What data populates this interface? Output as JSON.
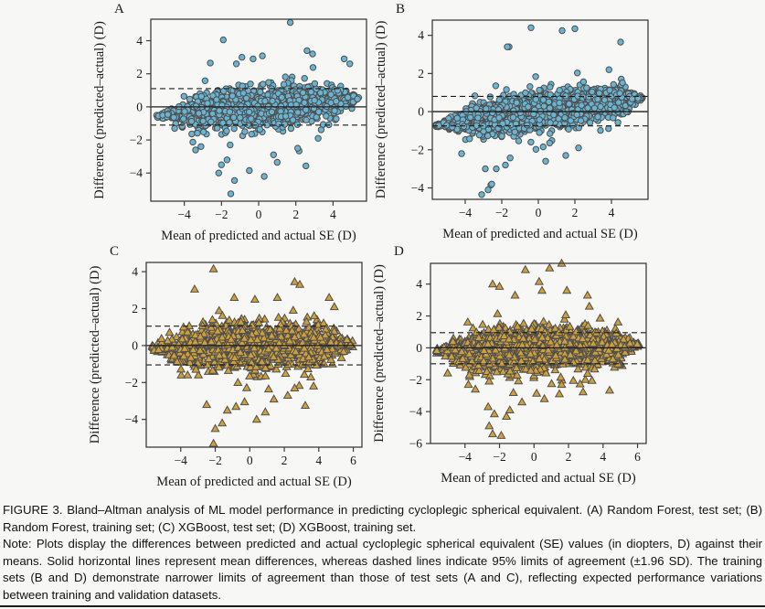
{
  "page": {
    "background": "#f7f7f5",
    "rule_color": "#1b1b1b"
  },
  "caption": {
    "figure_text": "FIGURE 3. Bland–Altman analysis of ML model performance in predicting cycloplegic spherical equivalent. (A) Random Forest, test set; (B) Random Forest, training set; (C) XGBoost, test set; (D) XGBoost, training set.",
    "note_text": "Note: Plots display the differences between predicted and actual cycloplegic spherical equivalent (SE) values (in diopters, D) against their means. Solid horizontal lines represent mean differences, whereas dashed lines indicate 95% limits of agreement (±1.96 SD). The training sets (B and D) demonstrate narrower limits of agreement than those of test sets (A and C), reflecting expected performance variations between training and validation datasets."
  },
  "chart_data": [
    {
      "type": "scatter",
      "panel_label": "A",
      "model": "Random Forest",
      "dataset": "test set",
      "xlabel": "Mean of predicted and actual SE (D)",
      "ylabel": "Difference (predicted–actual) (D)",
      "xlim": [
        -5.8,
        5.8
      ],
      "ylim": [
        -5.7,
        5.3
      ],
      "xticks": [
        -4,
        -2,
        0,
        2,
        4
      ],
      "yticks": [
        -4,
        -2,
        0,
        2,
        4
      ],
      "mean_diff": 0.0,
      "upper_loa": 1.1,
      "lower_loa": -1.1,
      "marker": "circle",
      "marker_fill": "#69b4d2",
      "marker_edge": "#4f4f4f",
      "line_color": "#1c1c1c",
      "grid": false,
      "n_points": 1450,
      "seed": 101,
      "trend_slope": 0.1,
      "y_sd": 0.55,
      "tail_frac": 0.035,
      "x_range": [
        -5.5,
        5.4
      ],
      "taper": [
        2.0,
        1.1
      ],
      "outliers": [
        [
          1.7,
          5.1
        ],
        [
          -1.9,
          4.05
        ],
        [
          -2.6,
          2.65
        ],
        [
          -1.2,
          2.6
        ],
        [
          -0.9,
          3.0
        ],
        [
          -0.3,
          2.9
        ],
        [
          2.6,
          3.4
        ],
        [
          2.9,
          3.2
        ],
        [
          4.6,
          2.9
        ],
        [
          4.9,
          2.6
        ],
        [
          -1.5,
          -5.25
        ],
        [
          -2.15,
          -4.0
        ],
        [
          -1.3,
          -4.45
        ],
        [
          -0.5,
          -3.85
        ],
        [
          0.3,
          -4.2
        ],
        [
          1.0,
          -3.35
        ],
        [
          -2.0,
          -3.5
        ],
        [
          -1.7,
          -3.2
        ],
        [
          0.8,
          -2.9
        ],
        [
          2.1,
          -2.5
        ],
        [
          -3.1,
          -2.4
        ],
        [
          3.2,
          -1.9
        ]
      ]
    },
    {
      "type": "scatter",
      "panel_label": "B",
      "model": "Random Forest",
      "dataset": "training set",
      "xlabel": "Mean of predicted and actual SE (D)",
      "ylabel": "Difference (predicted–actual) (D)",
      "xlim": [
        -5.8,
        6.0
      ],
      "ylim": [
        -4.6,
        4.8
      ],
      "xticks": [
        -4,
        -2,
        0,
        2,
        4
      ],
      "yticks": [
        -4,
        -2,
        0,
        2,
        4
      ],
      "mean_diff": 0.0,
      "upper_loa": 0.8,
      "lower_loa": -0.75,
      "marker": "circle",
      "marker_fill": "#69b4d2",
      "marker_edge": "#4f4f4f",
      "line_color": "#1c1c1c",
      "grid": false,
      "n_points": 2400,
      "seed": 202,
      "trend_slope": 0.13,
      "y_sd": 0.4,
      "tail_frac": 0.045,
      "x_range": [
        -5.6,
        5.7
      ],
      "taper": [
        2.2,
        1.2
      ],
      "outliers": [
        [
          -0.4,
          4.4
        ],
        [
          1.3,
          4.25
        ],
        [
          2.0,
          4.35
        ],
        [
          -1.6,
          3.4
        ],
        [
          4.5,
          3.65
        ],
        [
          -1.7,
          3.4
        ],
        [
          -2.9,
          -3.0
        ],
        [
          -2.6,
          -3.85
        ],
        [
          -2.75,
          -4.1
        ],
        [
          -3.1,
          -4.35
        ],
        [
          -2.55,
          -3.8
        ],
        [
          0.4,
          -2.6
        ],
        [
          1.5,
          -2.3
        ],
        [
          -1.8,
          -2.8
        ],
        [
          -4.2,
          -2.2
        ],
        [
          2.2,
          -1.9
        ],
        [
          -2.3,
          -3.0
        ]
      ]
    },
    {
      "type": "scatter",
      "panel_label": "C",
      "model": "XGBoost",
      "dataset": "test set",
      "xlabel": "Mean of predicted and actual SE (D)",
      "ylabel": "Difference (predicted–actual) (D)",
      "xlim": [
        -6.0,
        6.5
      ],
      "ylim": [
        -5.5,
        4.5
      ],
      "xticks": [
        -4,
        -2,
        0,
        2,
        4,
        6
      ],
      "yticks": [
        -4,
        -2,
        0,
        2,
        4
      ],
      "mean_diff": 0.0,
      "upper_loa": 1.05,
      "lower_loa": -1.05,
      "marker": "triangle",
      "marker_fill": "#cfa03a",
      "marker_edge": "#4f4f4f",
      "line_color": "#1c1c1c",
      "grid": false,
      "n_points": 1300,
      "seed": 303,
      "trend_slope": 0.02,
      "y_sd": 0.58,
      "tail_frac": 0.05,
      "x_range": [
        -5.7,
        6.0
      ],
      "taper": [
        1.8,
        1.5
      ],
      "outliers": [
        [
          -2.1,
          4.15
        ],
        [
          -3.2,
          3.05
        ],
        [
          2.6,
          3.45
        ],
        [
          2.9,
          3.3
        ],
        [
          -0.9,
          2.6
        ],
        [
          0.3,
          2.5
        ],
        [
          1.6,
          2.6
        ],
        [
          4.6,
          2.6
        ],
        [
          4.9,
          2.1
        ],
        [
          -2.1,
          -5.3
        ],
        [
          -2.0,
          -4.5
        ],
        [
          -1.6,
          -4.2
        ],
        [
          -1.3,
          -3.5
        ],
        [
          -0.8,
          -3.3
        ],
        [
          -2.5,
          -3.2
        ],
        [
          0.4,
          -4.0
        ],
        [
          0.9,
          -3.6
        ],
        [
          2.2,
          -2.7
        ],
        [
          2.6,
          -2.3
        ],
        [
          3.7,
          -2.2
        ],
        [
          -3.6,
          -1.6
        ],
        [
          1.4,
          -2.9
        ]
      ]
    },
    {
      "type": "scatter",
      "panel_label": "D",
      "model": "XGBoost",
      "dataset": "training set",
      "xlabel": "Mean of predicted and actual SE (D)",
      "ylabel": "Difference (predicted–actual) (D)",
      "xlim": [
        -6.0,
        6.5
      ],
      "ylim": [
        -6.0,
        5.3
      ],
      "xticks": [
        -4,
        -2,
        0,
        2,
        4,
        6
      ],
      "yticks": [
        -6,
        -4,
        -2,
        0,
        2,
        4
      ],
      "mean_diff": 0.0,
      "upper_loa": 0.95,
      "lower_loa": -1.0,
      "marker": "triangle",
      "marker_fill": "#cfa03a",
      "marker_edge": "#4f4f4f",
      "line_color": "#1c1c1c",
      "grid": false,
      "n_points": 2400,
      "seed": 404,
      "trend_slope": 0.03,
      "y_sd": 0.55,
      "tail_frac": 0.05,
      "x_range": [
        -5.7,
        6.1
      ],
      "taper": [
        2.0,
        1.5
      ],
      "outliers": [
        [
          -0.5,
          4.9
        ],
        [
          0.9,
          5.0
        ],
        [
          1.6,
          5.3
        ],
        [
          -2.4,
          4.0
        ],
        [
          -2.0,
          3.85
        ],
        [
          0.3,
          4.15
        ],
        [
          -1.1,
          3.3
        ],
        [
          1.9,
          3.6
        ],
        [
          3.1,
          3.3
        ],
        [
          -2.4,
          -5.4
        ],
        [
          -1.9,
          -5.5
        ],
        [
          -2.6,
          -4.9
        ],
        [
          -2.3,
          -4.15
        ],
        [
          -1.6,
          -4.3
        ],
        [
          -1.4,
          -3.9
        ],
        [
          -0.7,
          -3.4
        ],
        [
          0.6,
          -3.2
        ],
        [
          1.6,
          -2.3
        ],
        [
          -3.4,
          -2.6
        ],
        [
          -3.8,
          -2.3
        ]
      ]
    }
  ]
}
